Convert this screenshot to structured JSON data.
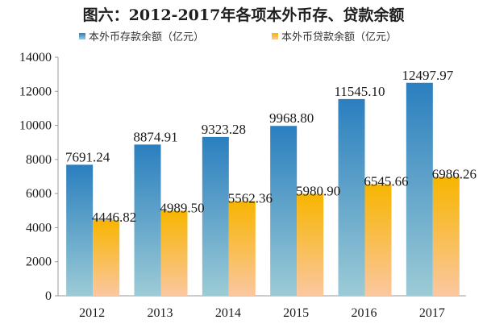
{
  "chart_data": {
    "type": "bar",
    "title": "图六：2012-2017年各项本外币存、贷款余额",
    "xlabel": "",
    "ylabel": "",
    "categories": [
      "2012",
      "2013",
      "2014",
      "2015",
      "2016",
      "2017"
    ],
    "series": [
      {
        "name": "本外币存款余额（亿元）",
        "values": [
          7691.24,
          8874.91,
          9323.28,
          9968.8,
          11545.1,
          12497.97
        ],
        "labels": [
          "7691.24",
          "8874.91",
          "9323.28",
          "9968.80",
          "11545.10",
          "12497.97"
        ],
        "color_top": "#2a7fbf",
        "color_bottom": "#9ccbd6"
      },
      {
        "name": "本外币贷款余额（亿元）",
        "values": [
          4446.82,
          4989.5,
          5562.36,
          5980.9,
          6545.66,
          6986.26
        ],
        "labels": [
          "4446.82",
          "4989.50",
          "5562.36",
          "5980.90",
          "6545.66",
          "6986.26"
        ],
        "color_top": "#f7b500",
        "color_bottom": "#fbc7a0"
      }
    ],
    "ylim": [
      0,
      14000
    ],
    "yticks": [
      "0",
      "2000",
      "4000",
      "6000",
      "8000",
      "10000",
      "12000",
      "14000"
    ],
    "grid": false,
    "legend_position": "top-center"
  }
}
